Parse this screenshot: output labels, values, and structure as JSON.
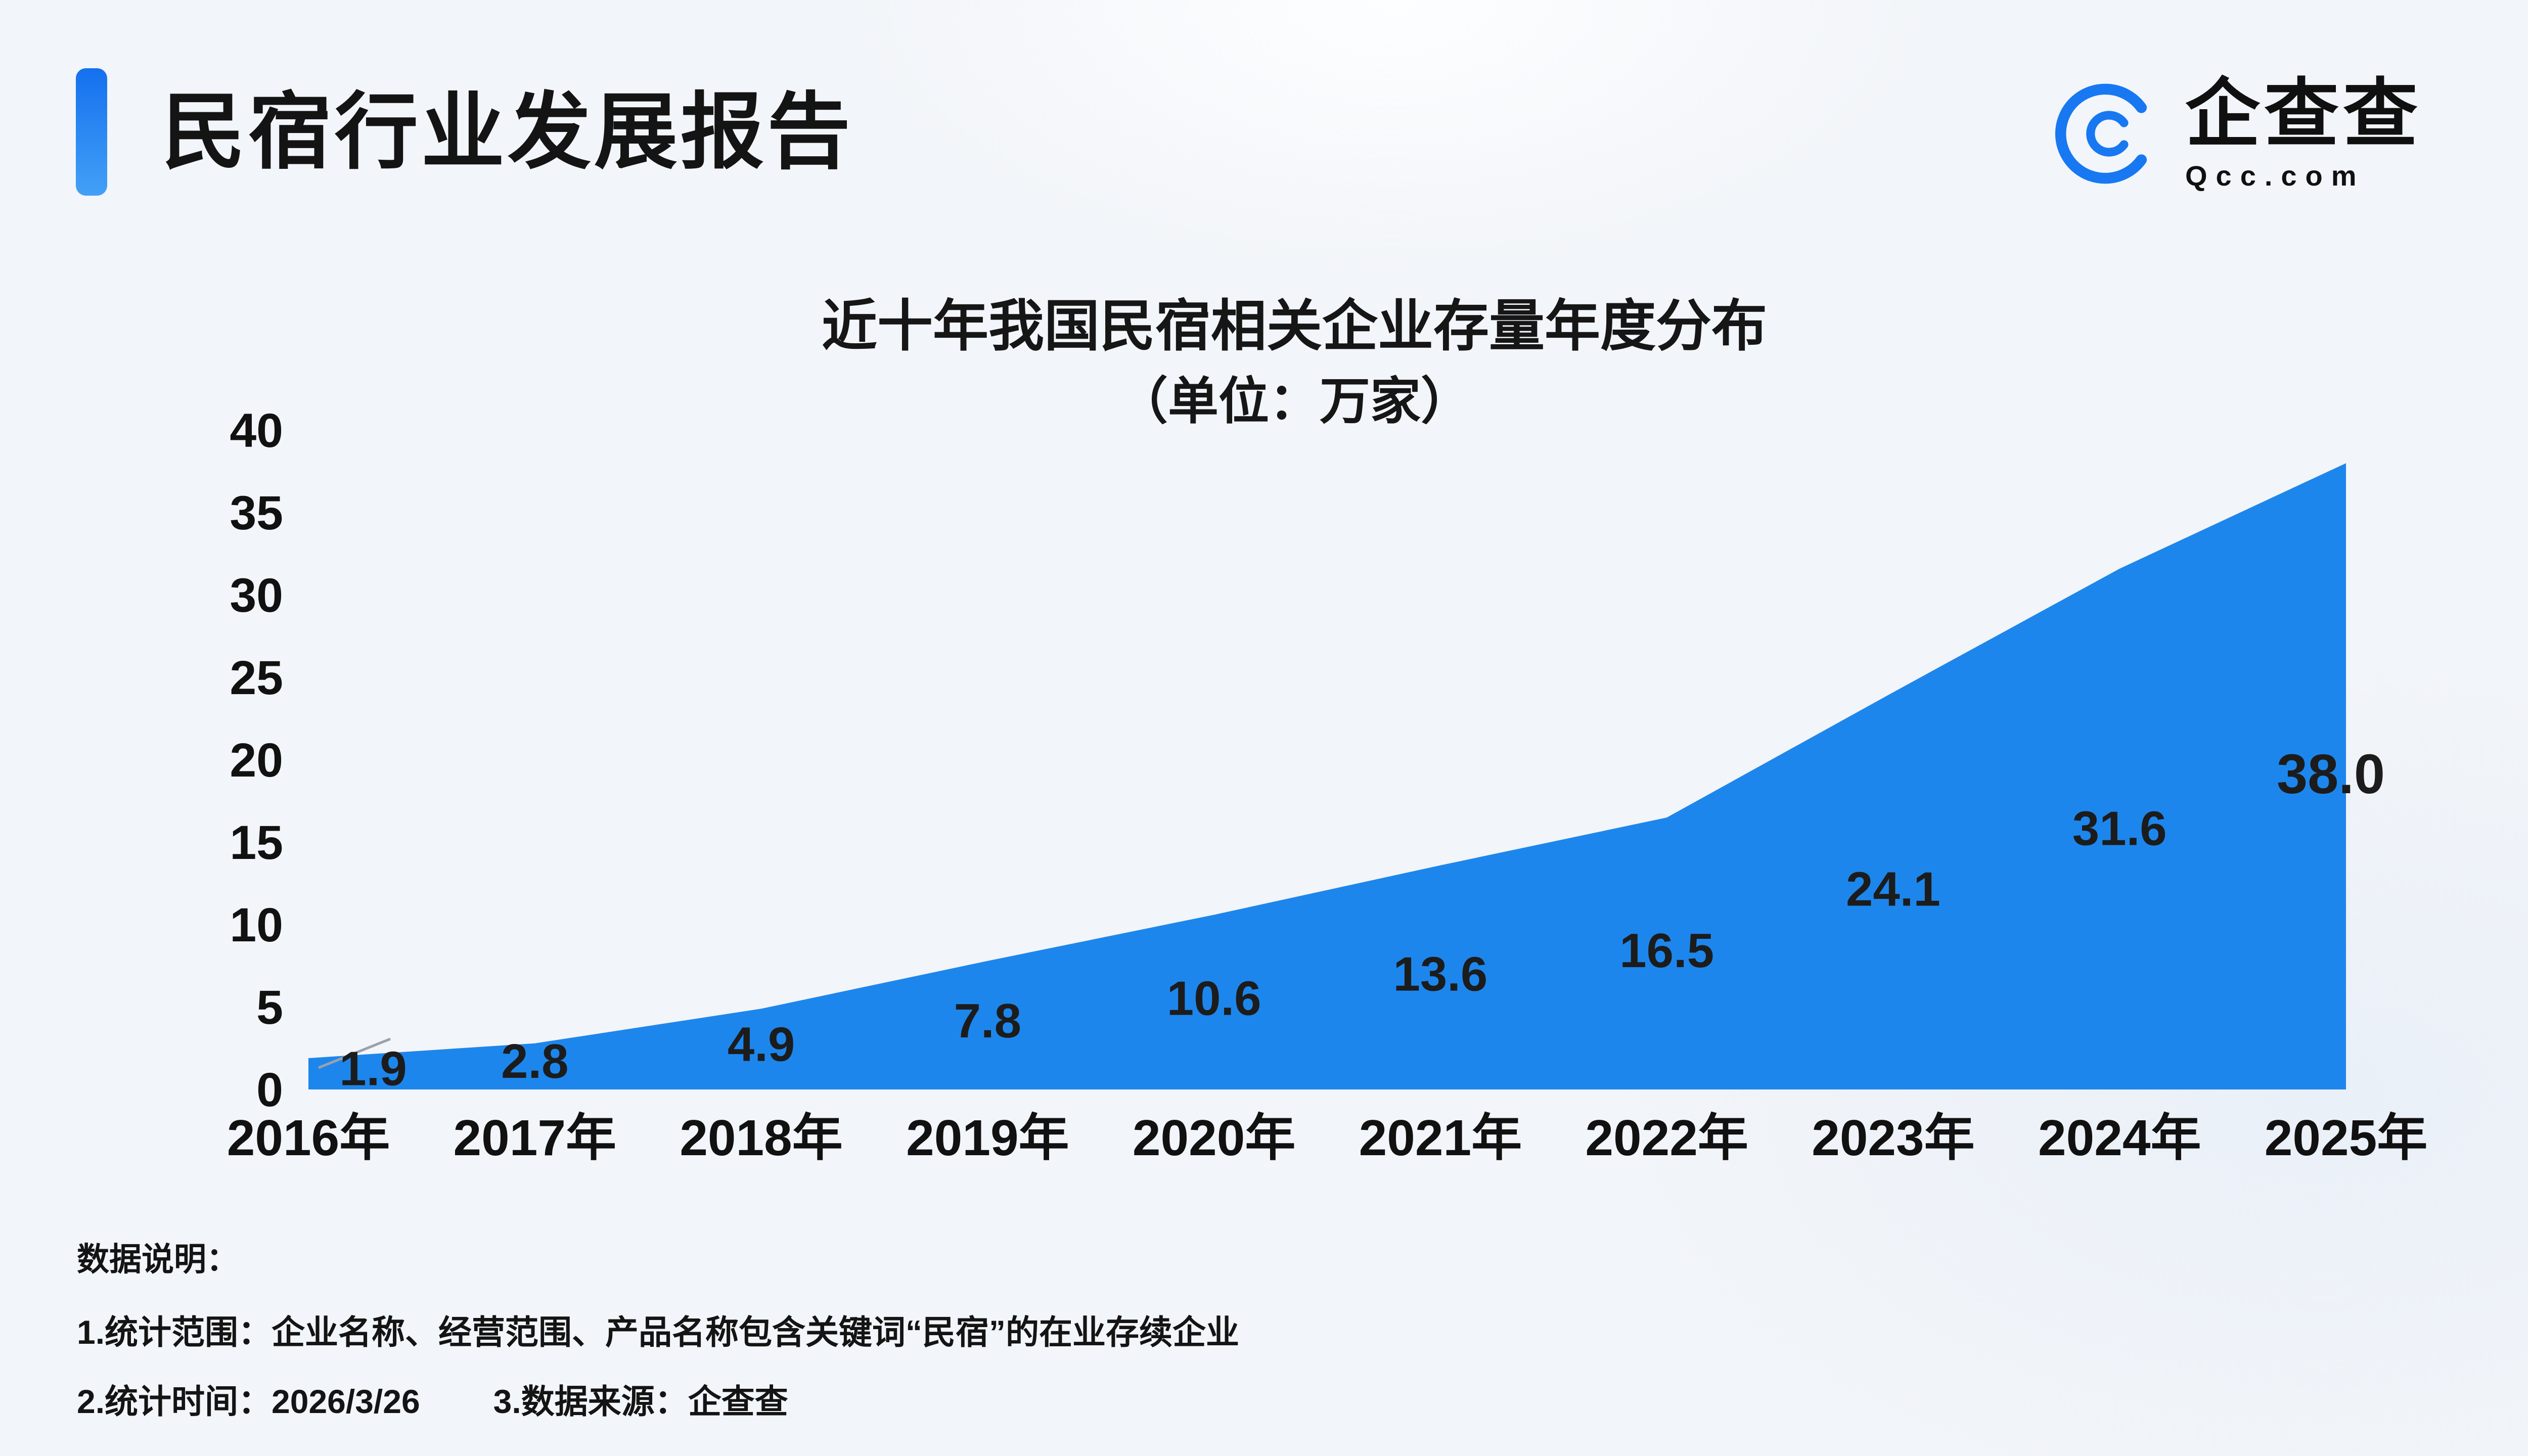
{
  "header": {
    "title": "民宿行业发展报告",
    "accent_color": "#1470ee"
  },
  "logo": {
    "name": "企查查",
    "domain": "Qcc.com",
    "color": "#1778f2"
  },
  "chart_data": {
    "type": "area",
    "title": "近十年我国民宿相关企业存量年度分布",
    "subtitle": "（单位：万家）",
    "categories": [
      "2016年",
      "2017年",
      "2018年",
      "2019年",
      "2020年",
      "2021年",
      "2022年",
      "2023年",
      "2024年",
      "2025年"
    ],
    "values": [
      1.9,
      2.8,
      4.9,
      7.8,
      10.6,
      13.6,
      16.5,
      24.1,
      31.6,
      38.0
    ],
    "ylim": [
      0,
      40
    ],
    "yticks": [
      0,
      5,
      10,
      15,
      20,
      25,
      30,
      35,
      40
    ],
    "area_color": "#1d86ec",
    "label_color": "#1c1c1c",
    "last_label_color": "#e60012",
    "grid": false,
    "legend": "none"
  },
  "footer": {
    "heading": "数据说明：",
    "line1": "1.统计范围：企业名称、经营范围、产品名称包含关键词“民宿”的在业存续企业",
    "line2_left": "2.统计时间：2026/3/26",
    "line2_right": "3.数据来源：企查查"
  }
}
